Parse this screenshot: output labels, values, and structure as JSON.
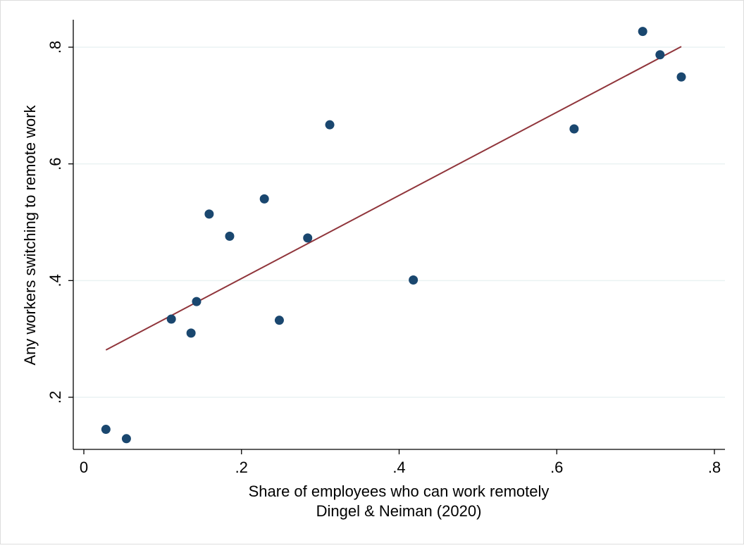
{
  "chart_data": {
    "type": "scatter",
    "title": "",
    "xlabel": "Share of employees who can work remotely",
    "xlabel_line2": "Dingel & Neiman (2020)",
    "ylabel": "Any workers switching to remote work",
    "xlim": [
      0,
      0.8
    ],
    "ylim": [
      0.2,
      0.8
    ],
    "xticks": [
      {
        "value": 0,
        "label": "0"
      },
      {
        "value": 0.2,
        "label": ".2"
      },
      {
        "value": 0.4,
        "label": ".4"
      },
      {
        "value": 0.6,
        "label": ".6"
      },
      {
        "value": 0.8,
        "label": ".8"
      }
    ],
    "yticks": [
      {
        "value": 0.2,
        "label": ".2"
      },
      {
        "value": 0.4,
        "label": ".4"
      },
      {
        "value": 0.6,
        "label": ".6"
      },
      {
        "value": 0.8,
        "label": ".8"
      }
    ],
    "grid": "horizontal",
    "legend": "none",
    "colors": {
      "points": "#1a476f",
      "fit_line": "#90353b",
      "grid": "#eaf2f3",
      "frame_border": "#dddddd"
    },
    "points": [
      {
        "x": 0.028,
        "y": 0.145
      },
      {
        "x": 0.054,
        "y": 0.129
      },
      {
        "x": 0.111,
        "y": 0.334
      },
      {
        "x": 0.136,
        "y": 0.31
      },
      {
        "x": 0.143,
        "y": 0.364
      },
      {
        "x": 0.159,
        "y": 0.514
      },
      {
        "x": 0.185,
        "y": 0.476
      },
      {
        "x": 0.229,
        "y": 0.54
      },
      {
        "x": 0.248,
        "y": 0.332
      },
      {
        "x": 0.284,
        "y": 0.473
      },
      {
        "x": 0.312,
        "y": 0.667
      },
      {
        "x": 0.418,
        "y": 0.401
      },
      {
        "x": 0.622,
        "y": 0.66
      },
      {
        "x": 0.709,
        "y": 0.827
      },
      {
        "x": 0.731,
        "y": 0.787
      },
      {
        "x": 0.758,
        "y": 0.749
      }
    ],
    "fit_line": [
      {
        "x": 0.028,
        "y": 0.281
      },
      {
        "x": 0.758,
        "y": 0.801
      }
    ]
  }
}
